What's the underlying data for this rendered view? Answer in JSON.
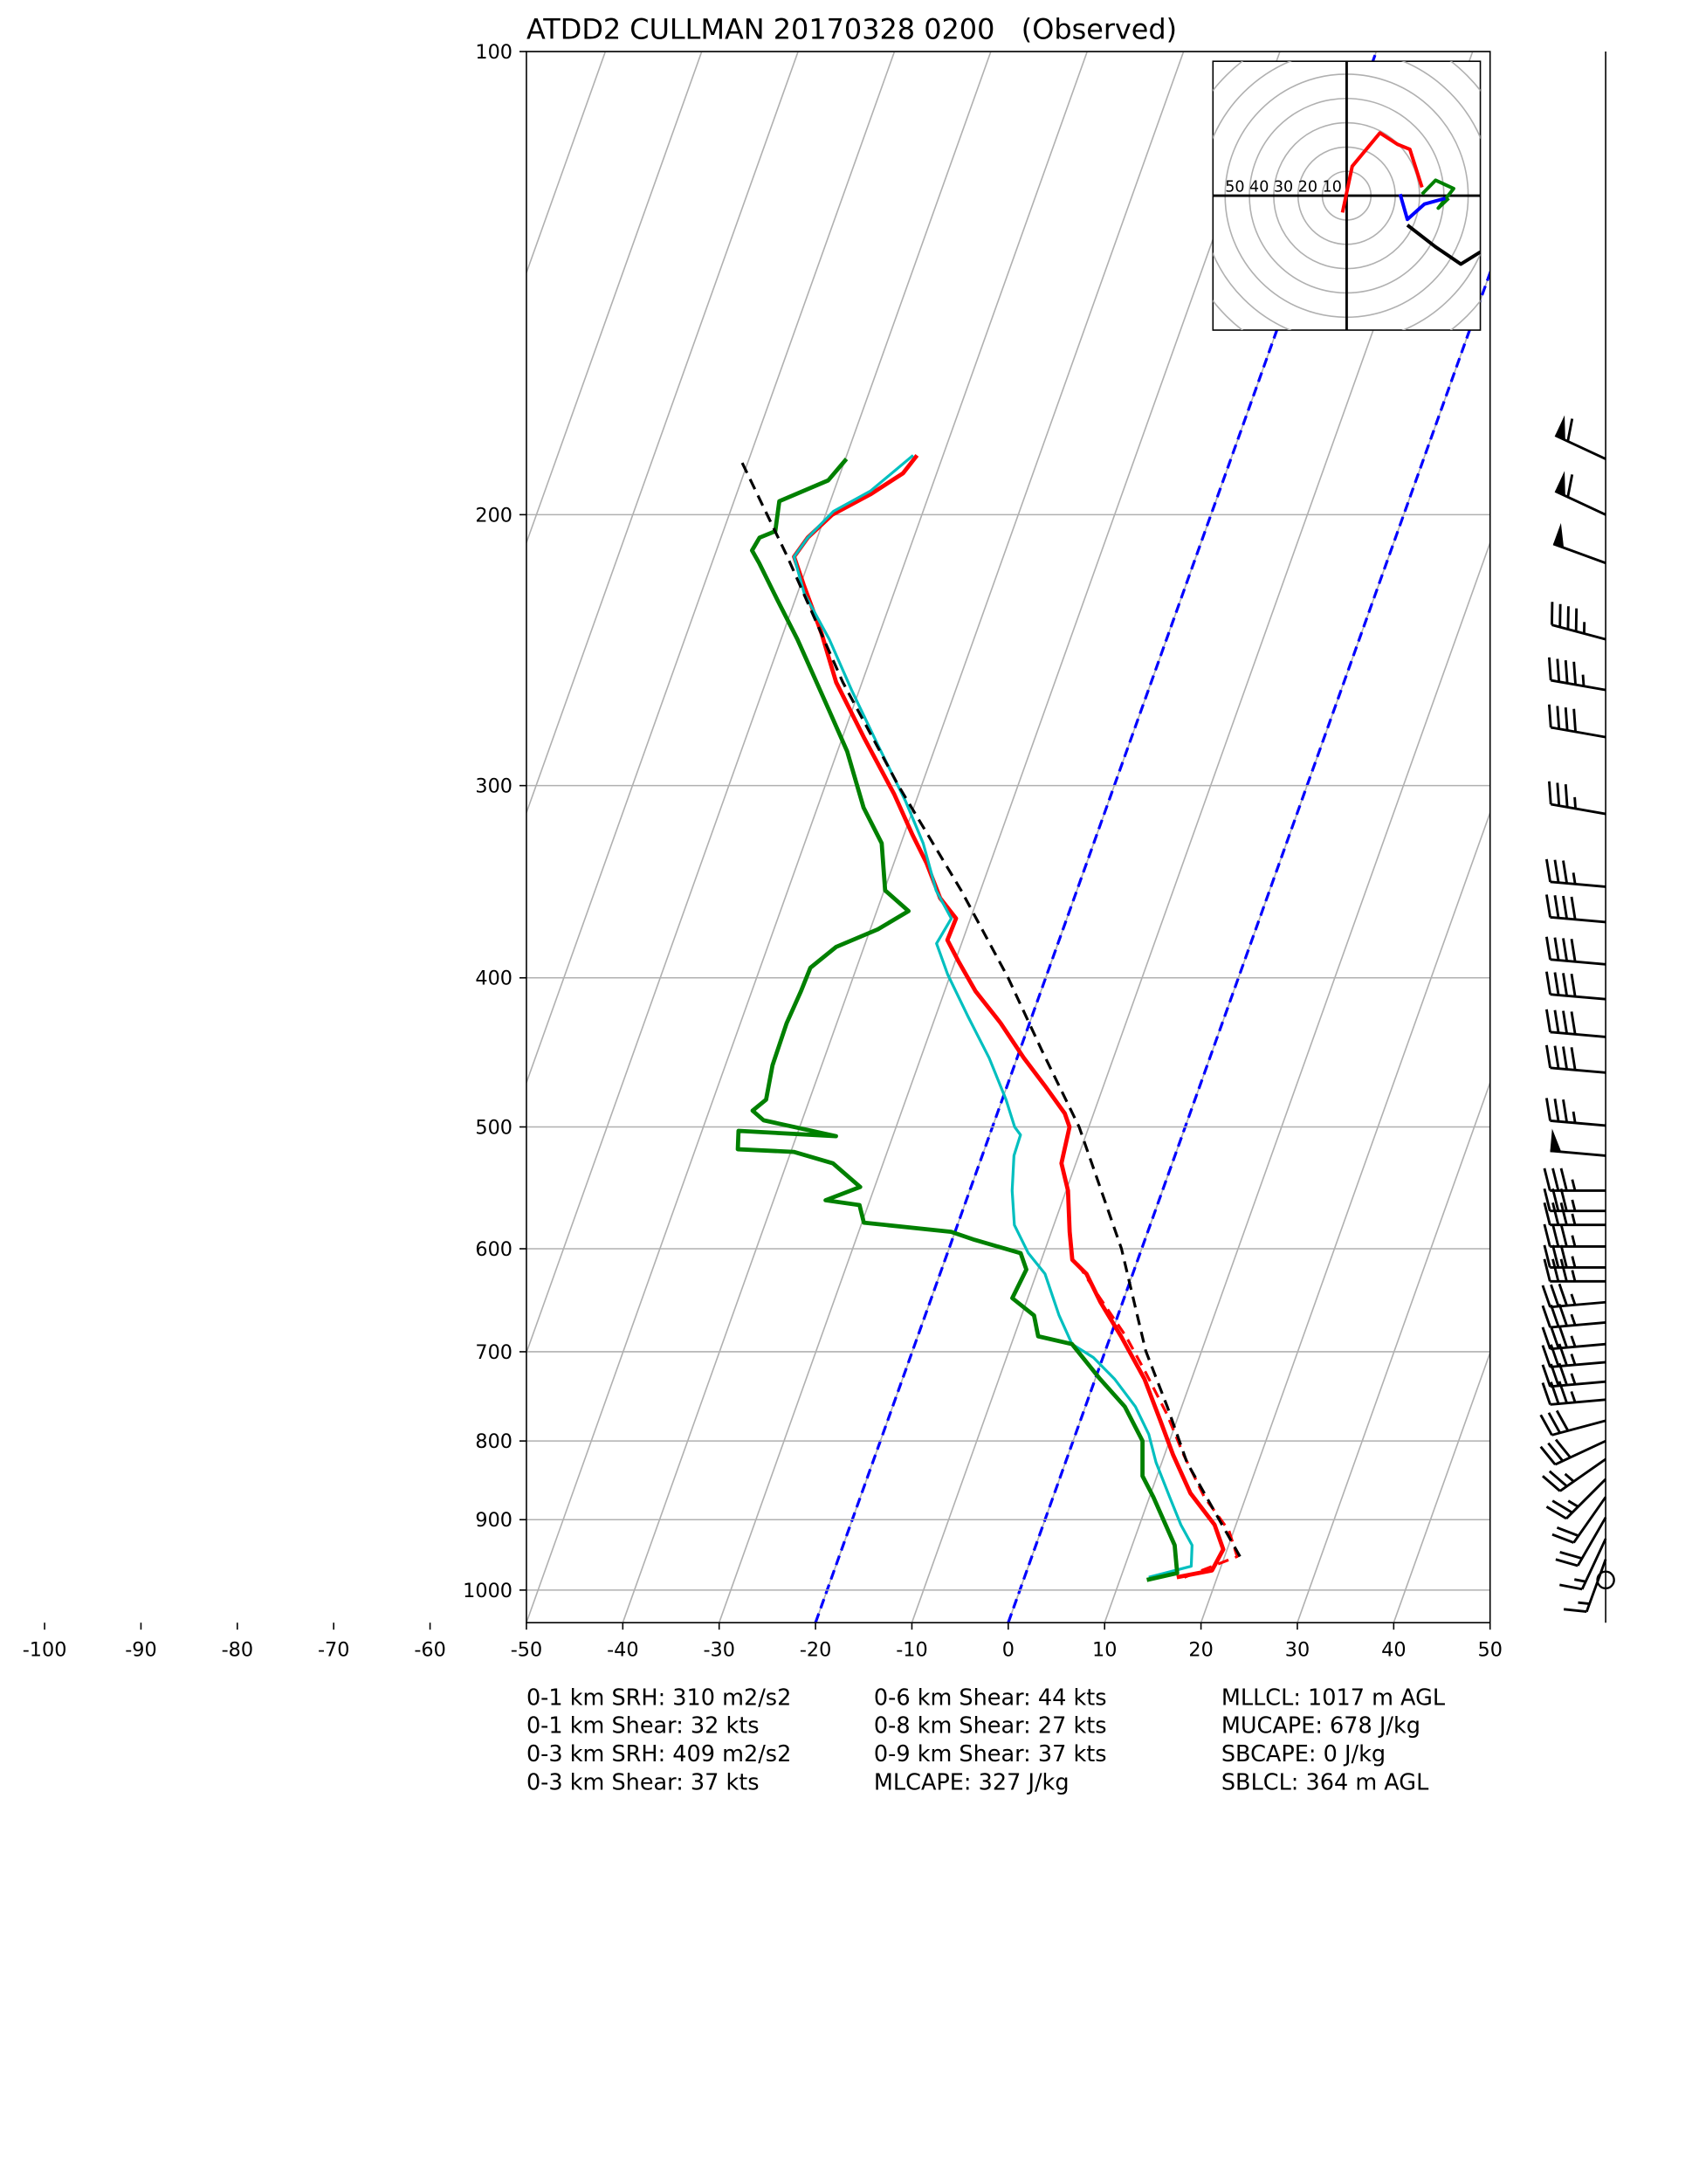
{
  "chart_data": {
    "type": "skewt",
    "title": "ATDD2 CULLMAN 20170328 0200   (Observed)",
    "xlim": [
      -50,
      50
    ],
    "ylim": [
      1050,
      100
    ],
    "log_y": true,
    "grid": true,
    "grid_color": "#b0b0b0",
    "xticks": [
      -100,
      -90,
      -80,
      -70,
      -60,
      -50,
      -40,
      -30,
      -20,
      -10,
      0,
      10,
      20,
      30,
      40,
      50
    ],
    "yticks": [
      100,
      200,
      300,
      400,
      500,
      600,
      700,
      800,
      900,
      1000
    ],
    "isotherms": [
      -150,
      -140,
      -130,
      -120,
      -110,
      -100,
      -90,
      -80,
      -70,
      -60,
      -50,
      -40,
      -30,
      -20,
      -10,
      0,
      10,
      20,
      30,
      40
    ],
    "dashed_isotherms": [
      -20,
      0
    ],
    "dashed_isotherm_color": "#0000ff",
    "series": [
      {
        "color": "#ff0000",
        "dashed": true,
        "line_width": 2,
        "x": [
          16.6,
          21.3,
          19.5,
          15.7,
          12.0,
          8.7,
          4.9,
          1.6,
          -2.5,
          -6.5
        ],
        "y": [
          981,
          951,
          915,
          870,
          817,
          768,
          721,
          684,
          646,
          610
        ]
      },
      {
        "color": "#ff0000",
        "dashed": false,
        "line_width": 3,
        "x": [
          15.8,
          19.2,
          19.6,
          17.8,
          14.1,
          10.9,
          8.3,
          5.1,
          1.1,
          -2.3,
          -4.8,
          -6.8,
          -8.1,
          -9.8,
          -11.5,
          -12.0,
          -13.0,
          -16.1,
          -19.3,
          -23.0,
          -26.8,
          -29.7,
          -31.6,
          -31.5,
          -33.9,
          -36.6,
          -39.1,
          -42.5,
          -47.8,
          -52.7,
          -56.0,
          -59.7,
          -61.7,
          -61.0,
          -59.3,
          -56.1,
          -53.5,
          -52.7
        ],
        "y": [
          981,
          971,
          941,
          907,
          865,
          817,
          776,
          729,
          684,
          650,
          623,
          610,
          585,
          550,
          528,
          500,
          490,
          470,
          451,
          428,
          408,
          390,
          378,
          366,
          355,
          337,
          323,
          304,
          279,
          257,
          239,
          222,
          213,
          207,
          200,
          194,
          188,
          183
        ]
      },
      {
        "color": "#00bfbf",
        "dashed": false,
        "line_width": 2,
        "x": [
          12.9,
          16.9,
          16.2,
          14.3,
          12.1,
          9.4,
          7.6,
          5.2,
          2.0,
          -1.0,
          -3.7,
          -6.1,
          -9.1,
          -11.6,
          -14.1,
          -15.6,
          -16.7,
          -16.8,
          -17.7,
          -19.6,
          -22.9,
          -26.6,
          -30.3,
          -32.6,
          -32.0,
          -34.6,
          -37.7,
          -41.1,
          -46.1,
          -50.8,
          -55.0,
          -59.3,
          -61.7,
          -61.0,
          -59.3,
          -56.2,
          -53.1
        ],
        "y": [
          981,
          965,
          935,
          907,
          870,
          826,
          792,
          760,
          729,
          706,
          692,
          663,
          623,
          604,
          579,
          550,
          522,
          506,
          500,
          480,
          451,
          424,
          398,
          380,
          366,
          351,
          327,
          307,
          282,
          260,
          241,
          225,
          213,
          207,
          199,
          193,
          183
        ]
      },
      {
        "color": "#008000",
        "dashed": false,
        "line_width": 3,
        "x": [
          12.8,
          15.7,
          14.4,
          10.4,
          8.5,
          7.2,
          4.1,
          0.5,
          -3.7,
          -7.5,
          -8.7,
          -11.6,
          -11.2,
          -12.4,
          -17.7,
          -20.4,
          -29.8,
          -30.9,
          -34.6,
          -31.5,
          -35.2,
          -39.7,
          -45.6,
          -46.2,
          -35.9,
          -44.0,
          -45.5,
          -44.5,
          -45.1,
          -45.2,
          -44.9,
          -44.8,
          -42.9,
          -39.2,
          -36.7,
          -39.9,
          -42.0,
          -45.2,
          -49.0,
          -52.4,
          -58.3,
          -61.9,
          -65.1,
          -66.3,
          -66.0,
          -64.6,
          -65.3,
          -61.0,
          -59.9
        ],
        "y": [
          985,
          975,
          935,
          870,
          843,
          800,
          760,
          729,
          692,
          684,
          663,
          646,
          619,
          604,
          592,
          585,
          577,
          562,
          558,
          547,
          528,
          519,
          517,
          503,
          507,
          495,
          488,
          480,
          456,
          428,
          408,
          394,
          382,
          372,
          362,
          351,
          327,
          310,
          285,
          268,
          241,
          227,
          215,
          211,
          207,
          205,
          196,
          190,
          184
        ]
      },
      {
        "color": "#000000",
        "dashed": true,
        "line_width": 2,
        "x": [
          21.6,
          12.6,
          8.5,
          4.2,
          -2.1,
          -11.0,
          -17.7,
          -23.9,
          -32.0,
          -42.4,
          -52.0,
          -62.4,
          -70.9
        ],
        "y": [
          951,
          826,
          760,
          699,
          600,
          500,
          446,
          400,
          351,
          300,
          257,
          213,
          184
        ]
      }
    ],
    "barbs": {
      "pressure": [
        184,
        200,
        215,
        241,
        260,
        279,
        313,
        349,
        368,
        392,
        413,
        437,
        461,
        499,
        522,
        550,
        567,
        579,
        598,
        617,
        630,
        650,
        670,
        692,
        711,
        732,
        752,
        776,
        800,
        822,
        847,
        870,
        897,
        926,
        955,
        985
      ],
      "speed": [
        60,
        60,
        50,
        45,
        45,
        40,
        35,
        35,
        40,
        40,
        40,
        40,
        40,
        35,
        50,
        35,
        35,
        35,
        35,
        35,
        35,
        35,
        35,
        35,
        35,
        35,
        35,
        30,
        30,
        25,
        25,
        20,
        20,
        15,
        15,
        0
      ],
      "direction": [
        295,
        295,
        290,
        285,
        280,
        280,
        280,
        275,
        275,
        275,
        275,
        275,
        275,
        275,
        275,
        270,
        270,
        270,
        270,
        270,
        270,
        265,
        265,
        265,
        265,
        265,
        265,
        255,
        245,
        235,
        225,
        215,
        210,
        205,
        200,
        0
      ]
    },
    "hodograph": {
      "xlim": [
        -55,
        55
      ],
      "ylim": [
        -55,
        55
      ],
      "rings": [
        10,
        20,
        30,
        40,
        50,
        60,
        70,
        80
      ],
      "ring_labels": [
        50,
        40,
        30,
        20,
        10
      ],
      "traces": [
        {
          "color": "#ff0000",
          "u": [
            -1.7,
            2.3,
            13.7,
            21,
            26,
            31
          ],
          "v": [
            -6.9,
            12,
            25.7,
            21,
            19,
            3.4
          ]
        },
        {
          "color": "#008000",
          "u": [
            31,
            36.6,
            44,
            37.7,
            42
          ],
          "v": [
            0.6,
            6.3,
            2.9,
            -5.1,
            -1
          ]
        },
        {
          "color": "#0000ff",
          "u": [
            22,
            25,
            32,
            40.6
          ],
          "v": [
            0.6,
            -9.7,
            -3.4,
            -1.1
          ]
        },
        {
          "color": "#000000",
          "u": [
            25,
            36.6,
            47,
            55
          ],
          "v": [
            -12,
            -21,
            -28,
            -23
          ]
        }
      ]
    },
    "stats": [
      [
        "0-1 km SRH: 310 m2/s2",
        "0-1 km Shear: 32 kts",
        "0-3 km SRH: 409 m2/s2",
        "0-3 km Shear: 37 kts"
      ],
      [
        "0-6 km Shear: 44 kts",
        "0-8 km Shear: 27 kts",
        "0-9 km Shear: 37 kts",
        "MLCAPE: 327 J/kg"
      ],
      [
        "MLLCL: 1017 m AGL",
        "MUCAPE: 678 J/kg",
        "SBCAPE: 0 J/kg",
        "SBLCL: 364 m AGL"
      ]
    ]
  }
}
